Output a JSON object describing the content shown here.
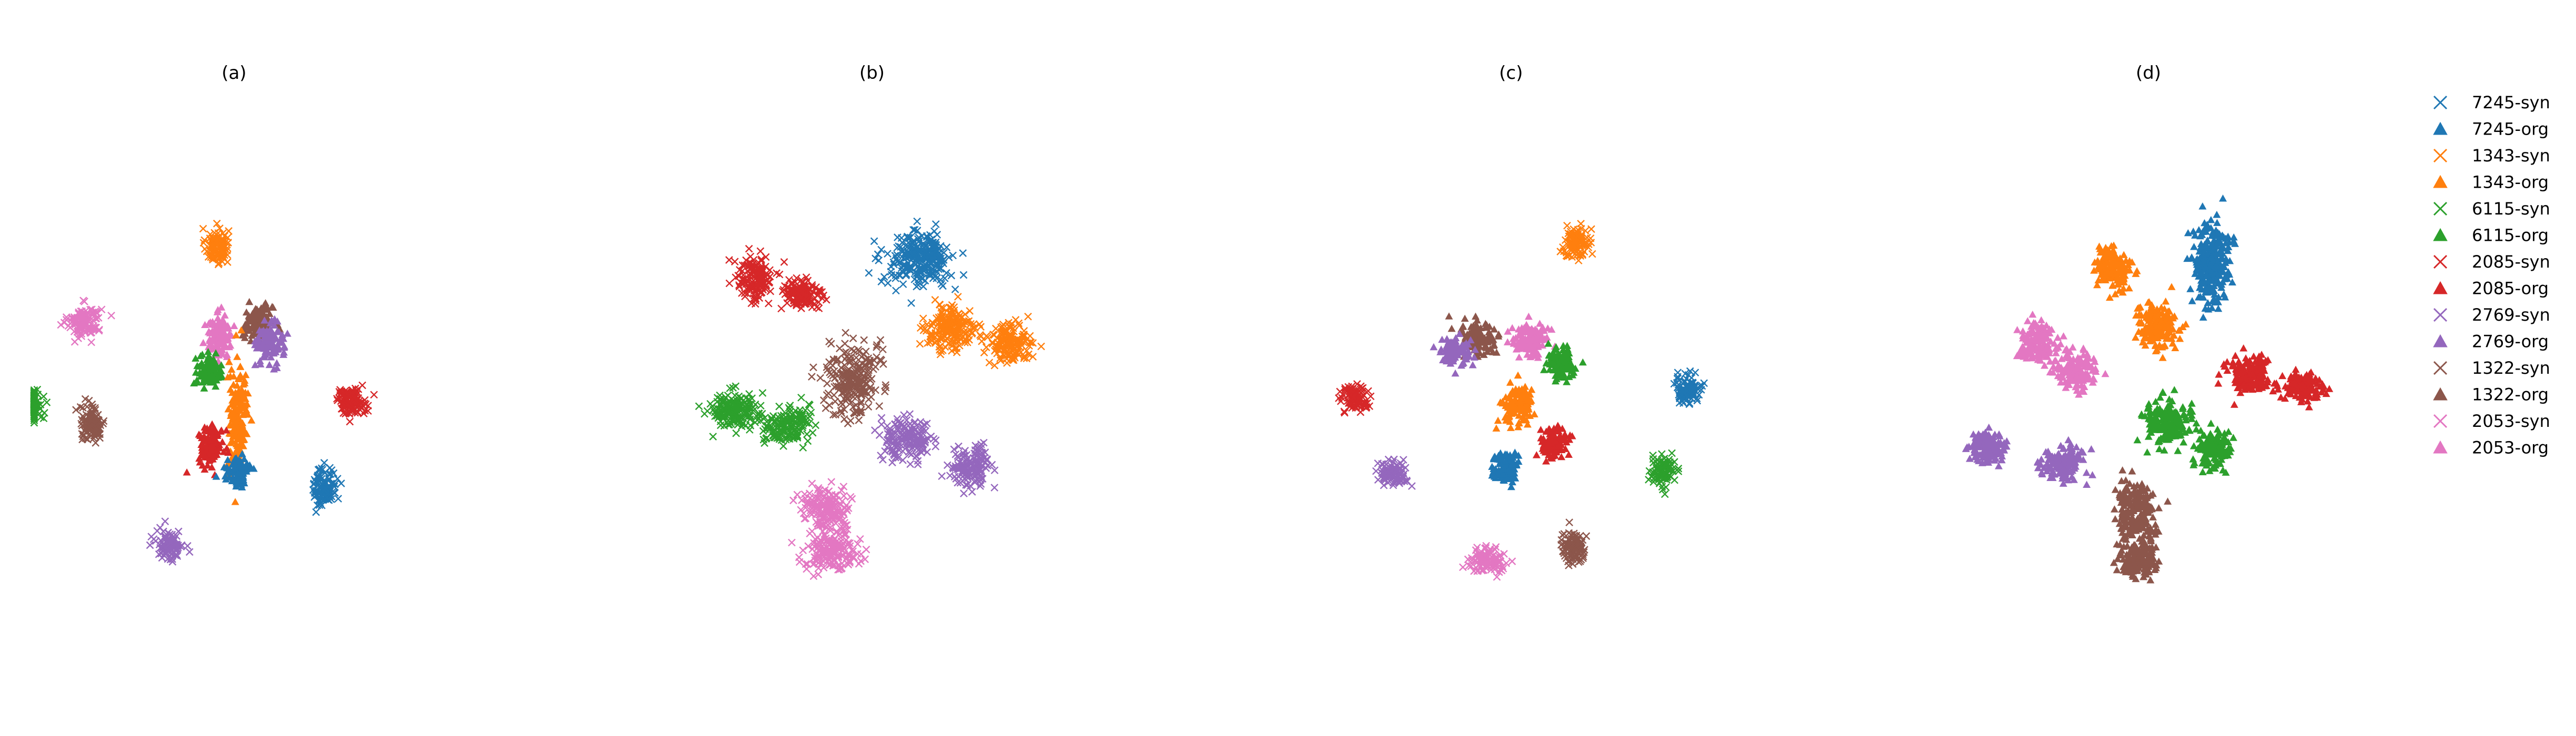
{
  "chart_data": [
    {
      "type": "scatter",
      "title": "(a)",
      "grid": false,
      "axes_visible": false,
      "xlim": [
        -10,
        10
      ],
      "ylim": [
        -10,
        10
      ],
      "clusters": [
        {
          "series": "1343-syn",
          "center": [
            -0.9,
            7.7
          ],
          "spread": [
            0.55,
            0.85
          ],
          "count": 110
        },
        {
          "series": "2053-syn",
          "center": [
            -7.9,
            3.7
          ],
          "spread": [
            0.8,
            0.75
          ],
          "count": 120
        },
        {
          "series": "6115-syn",
          "center": [
            -10.8,
            -0.7
          ],
          "spread": [
            0.65,
            0.75
          ],
          "count": 110
        },
        {
          "series": "1322-syn",
          "center": [
            -7.5,
            -1.7
          ],
          "spread": [
            0.6,
            0.85
          ],
          "count": 110
        },
        {
          "series": "2769-syn",
          "center": [
            -3.4,
            -8.1
          ],
          "spread": [
            0.65,
            0.75
          ],
          "count": 100
        },
        {
          "series": "2085-syn",
          "center": [
            6.2,
            -0.5
          ],
          "spread": [
            0.75,
            0.6
          ],
          "count": 110
        },
        {
          "series": "7245-syn",
          "center": [
            4.8,
            -5.0
          ],
          "spread": [
            0.55,
            1.0
          ],
          "count": 110
        },
        {
          "series": "2053-org",
          "center": [
            -0.8,
            2.9
          ],
          "spread": [
            0.65,
            1.0
          ],
          "count": 120
        },
        {
          "series": "1322-org",
          "center": [
            1.3,
            3.6
          ],
          "spread": [
            0.7,
            0.85
          ],
          "count": 120
        },
        {
          "series": "2769-org",
          "center": [
            1.9,
            2.6
          ],
          "spread": [
            0.65,
            0.95
          ],
          "count": 110
        },
        {
          "series": "6115-org",
          "center": [
            -1.3,
            1.1
          ],
          "spread": [
            0.6,
            0.7
          ],
          "count": 100
        },
        {
          "series": "1343-org",
          "center": [
            0.2,
            -1.5
          ],
          "spread": [
            0.5,
            2.6
          ],
          "count": 160
        },
        {
          "series": "2085-org",
          "center": [
            -1.2,
            -2.8
          ],
          "spread": [
            0.6,
            0.95
          ],
          "count": 110
        },
        {
          "series": "7245-org",
          "center": [
            0.2,
            -4.2
          ],
          "spread": [
            0.5,
            0.6
          ],
          "count": 100
        }
      ]
    },
    {
      "type": "scatter",
      "title": "(b)",
      "grid": false,
      "axes_visible": false,
      "xlim": [
        -10,
        10
      ],
      "ylim": [
        -10,
        10
      ],
      "clusters": [
        {
          "series": "2085-syn",
          "center": [
            -6.2,
            6.0
          ],
          "spread": [
            0.9,
            1.1
          ],
          "count": 150
        },
        {
          "series": "2085-syn",
          "center": [
            -3.7,
            5.1
          ],
          "spread": [
            1.0,
            0.8
          ],
          "count": 130
        },
        {
          "series": "7245-syn",
          "center": [
            2.5,
            7.0
          ],
          "spread": [
            1.6,
            1.3
          ],
          "count": 260
        },
        {
          "series": "1343-syn",
          "center": [
            4.2,
            3.3
          ],
          "spread": [
            1.2,
            1.1
          ],
          "count": 200
        },
        {
          "series": "1343-syn",
          "center": [
            7.2,
            2.6
          ],
          "spread": [
            1.0,
            0.9
          ],
          "count": 150
        },
        {
          "series": "1322-syn",
          "center": [
            -1.0,
            0.7
          ],
          "spread": [
            1.2,
            1.8
          ],
          "count": 240
        },
        {
          "series": "6115-syn",
          "center": [
            -7.3,
            -1.0
          ],
          "spread": [
            1.2,
            0.85
          ],
          "count": 180
        },
        {
          "series": "6115-syn",
          "center": [
            -4.5,
            -1.8
          ],
          "spread": [
            1.1,
            0.9
          ],
          "count": 150
        },
        {
          "series": "2769-syn",
          "center": [
            1.8,
            -2.5
          ],
          "spread": [
            1.2,
            1.0
          ],
          "count": 160
        },
        {
          "series": "2769-syn",
          "center": [
            5.3,
            -4.0
          ],
          "spread": [
            1.0,
            0.9
          ],
          "count": 140
        },
        {
          "series": "2053-syn",
          "center": [
            -2.3,
            -6.2
          ],
          "spread": [
            1.2,
            1.0
          ],
          "count": 180
        },
        {
          "series": "2053-syn",
          "center": [
            -2.2,
            -8.4
          ],
          "spread": [
            1.3,
            0.9
          ],
          "count": 170
        }
      ]
    },
    {
      "type": "scatter",
      "title": "(c)",
      "grid": false,
      "axes_visible": false,
      "xlim": [
        -10,
        10
      ],
      "ylim": [
        -10,
        10
      ],
      "clusters": [
        {
          "series": "1343-syn",
          "center": [
            3.5,
            7.9
          ],
          "spread": [
            0.6,
            0.75
          ],
          "count": 100
        },
        {
          "series": "2085-syn",
          "center": [
            -8.2,
            -0.3
          ],
          "spread": [
            0.7,
            0.55
          ],
          "count": 100
        },
        {
          "series": "7245-syn",
          "center": [
            9.3,
            0.1
          ],
          "spread": [
            0.7,
            0.6
          ],
          "count": 100
        },
        {
          "series": "2769-syn",
          "center": [
            -6.2,
            -4.3
          ],
          "spread": [
            0.75,
            0.6
          ],
          "count": 100
        },
        {
          "series": "6115-syn",
          "center": [
            8.0,
            -4.2
          ],
          "spread": [
            0.6,
            0.65
          ],
          "count": 100
        },
        {
          "series": "2053-syn",
          "center": [
            -1.3,
            -9.0
          ],
          "spread": [
            0.8,
            0.6
          ],
          "count": 100
        },
        {
          "series": "1322-syn",
          "center": [
            3.3,
            -8.2
          ],
          "spread": [
            0.6,
            0.75
          ],
          "count": 100
        },
        {
          "series": "1322-org",
          "center": [
            -1.8,
            2.9
          ],
          "spread": [
            0.9,
            0.8
          ],
          "count": 120
        },
        {
          "series": "2769-org",
          "center": [
            -2.9,
            2.1
          ],
          "spread": [
            0.75,
            0.7
          ],
          "count": 90
        },
        {
          "series": "2053-org",
          "center": [
            1.0,
            2.7
          ],
          "spread": [
            0.85,
            0.8
          ],
          "count": 120
        },
        {
          "series": "6115-org",
          "center": [
            2.7,
            1.5
          ],
          "spread": [
            0.7,
            0.75
          ],
          "count": 110
        },
        {
          "series": "1343-org",
          "center": [
            0.3,
            -0.7
          ],
          "spread": [
            0.75,
            0.95
          ],
          "count": 120
        },
        {
          "series": "2085-org",
          "center": [
            2.3,
            -2.7
          ],
          "spread": [
            0.65,
            0.7
          ],
          "count": 100
        },
        {
          "series": "7245-org",
          "center": [
            -0.3,
            -4.0
          ],
          "spread": [
            0.65,
            0.8
          ],
          "count": 100
        }
      ]
    },
    {
      "type": "scatter",
      "title": "(d)",
      "grid": false,
      "axes_visible": false,
      "xlim": [
        -10,
        10
      ],
      "ylim": [
        -10,
        10
      ],
      "clusters": [
        {
          "series": "1343-org",
          "center": [
            -1.9,
            6.6
          ],
          "spread": [
            0.8,
            1.0
          ],
          "count": 140
        },
        {
          "series": "7245-org",
          "center": [
            3.3,
            6.8
          ],
          "spread": [
            0.9,
            2.0
          ],
          "count": 260
        },
        {
          "series": "1343-org",
          "center": [
            0.4,
            3.4
          ],
          "spread": [
            1.0,
            1.1
          ],
          "count": 160
        },
        {
          "series": "2085-org",
          "center": [
            5.3,
            0.8
          ],
          "spread": [
            1.1,
            0.85
          ],
          "count": 150
        },
        {
          "series": "2085-org",
          "center": [
            8.1,
            0.3
          ],
          "spread": [
            0.9,
            0.8
          ],
          "count": 120
        },
        {
          "series": "2053-org",
          "center": [
            -5.8,
            2.6
          ],
          "spread": [
            1.0,
            0.9
          ],
          "count": 150
        },
        {
          "series": "2053-org",
          "center": [
            -3.8,
            1.1
          ],
          "spread": [
            1.0,
            0.9
          ],
          "count": 140
        },
        {
          "series": "6115-org",
          "center": [
            0.9,
            -1.7
          ],
          "spread": [
            1.2,
            1.0
          ],
          "count": 180
        },
        {
          "series": "6115-org",
          "center": [
            3.5,
            -3.1
          ],
          "spread": [
            0.85,
            0.85
          ],
          "count": 130
        },
        {
          "series": "2769-org",
          "center": [
            -8.5,
            -2.9
          ],
          "spread": [
            0.9,
            0.75
          ],
          "count": 120
        },
        {
          "series": "2769-org",
          "center": [
            -4.6,
            -3.7
          ],
          "spread": [
            1.1,
            0.8
          ],
          "count": 140
        },
        {
          "series": "1322-org",
          "center": [
            -0.7,
            -6.3
          ],
          "spread": [
            1.0,
            1.3
          ],
          "count": 180
        },
        {
          "series": "1322-org",
          "center": [
            -0.5,
            -8.8
          ],
          "spread": [
            0.9,
            0.9
          ],
          "count": 140
        }
      ]
    }
  ],
  "legend": {
    "placement": "right",
    "entries": [
      {
        "label": "7245-syn",
        "marker": "x",
        "color": "#1f77b4"
      },
      {
        "label": "7245-org",
        "marker": "triangle",
        "color": "#1f77b4"
      },
      {
        "label": "1343-syn",
        "marker": "x",
        "color": "#ff7f0e"
      },
      {
        "label": "1343-org",
        "marker": "triangle",
        "color": "#ff7f0e"
      },
      {
        "label": "6115-syn",
        "marker": "x",
        "color": "#2ca02c"
      },
      {
        "label": "6115-org",
        "marker": "triangle",
        "color": "#2ca02c"
      },
      {
        "label": "2085-syn",
        "marker": "x",
        "color": "#d62728"
      },
      {
        "label": "2085-org",
        "marker": "triangle",
        "color": "#d62728"
      },
      {
        "label": "2769-syn",
        "marker": "x",
        "color": "#9467bd"
      },
      {
        "label": "2769-org",
        "marker": "triangle",
        "color": "#9467bd"
      },
      {
        "label": "1322-syn",
        "marker": "x",
        "color": "#8c564b"
      },
      {
        "label": "1322-org",
        "marker": "triangle",
        "color": "#8c564b"
      },
      {
        "label": "2053-syn",
        "marker": "x",
        "color": "#e377c2"
      },
      {
        "label": "2053-org",
        "marker": "triangle",
        "color": "#e377c2"
      }
    ]
  }
}
